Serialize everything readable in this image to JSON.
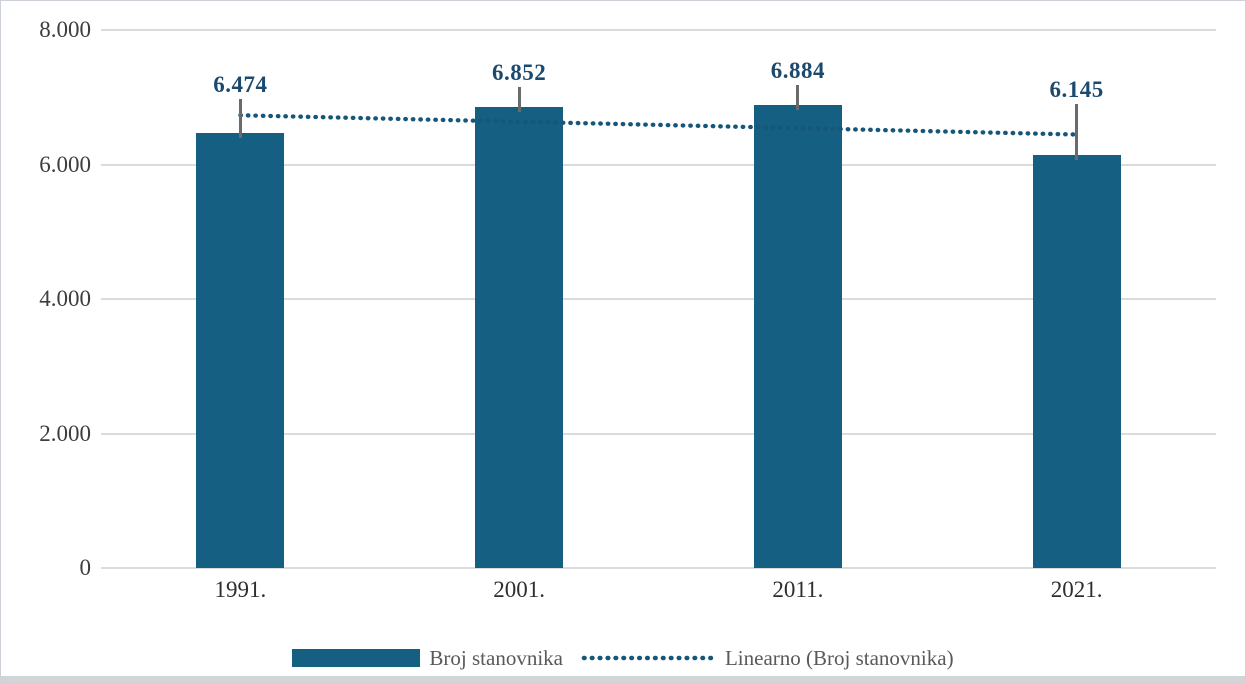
{
  "chart_data": {
    "type": "bar",
    "title": "",
    "categories": [
      "1991.",
      "2001.",
      "2011.",
      "2021."
    ],
    "series": [
      {
        "name": "Broj stanovnika",
        "values": [
          6474,
          6852,
          6884,
          6145
        ]
      }
    ],
    "data_labels": [
      "6.474",
      "6.852",
      "6.884",
      "6.145"
    ],
    "trendline": {
      "name": "Linearno (Broj stanovnika)",
      "kind": "linear",
      "style": "dotted"
    },
    "y_ticks": [
      0,
      2000,
      4000,
      6000,
      8000
    ],
    "y_tick_labels": [
      "0",
      "2.000",
      "4.000",
      "6.000",
      "8.000"
    ],
    "ylim": [
      0,
      8000
    ],
    "xlabel": "",
    "ylabel": "",
    "grid": "horizontal",
    "legend_position": "bottom"
  },
  "legend": {
    "series_label": "Broj stanovnika",
    "trend_label": "Linearno (Broj stanovnika)"
  },
  "colors": {
    "bar": "#156082",
    "trendline": "#15567a",
    "data_label": "#1c4a6e",
    "axis_text": "#3d3d3d",
    "gridline": "#dbdbdb",
    "legend_text": "#595959",
    "leader_line": "#6a6a6a"
  }
}
